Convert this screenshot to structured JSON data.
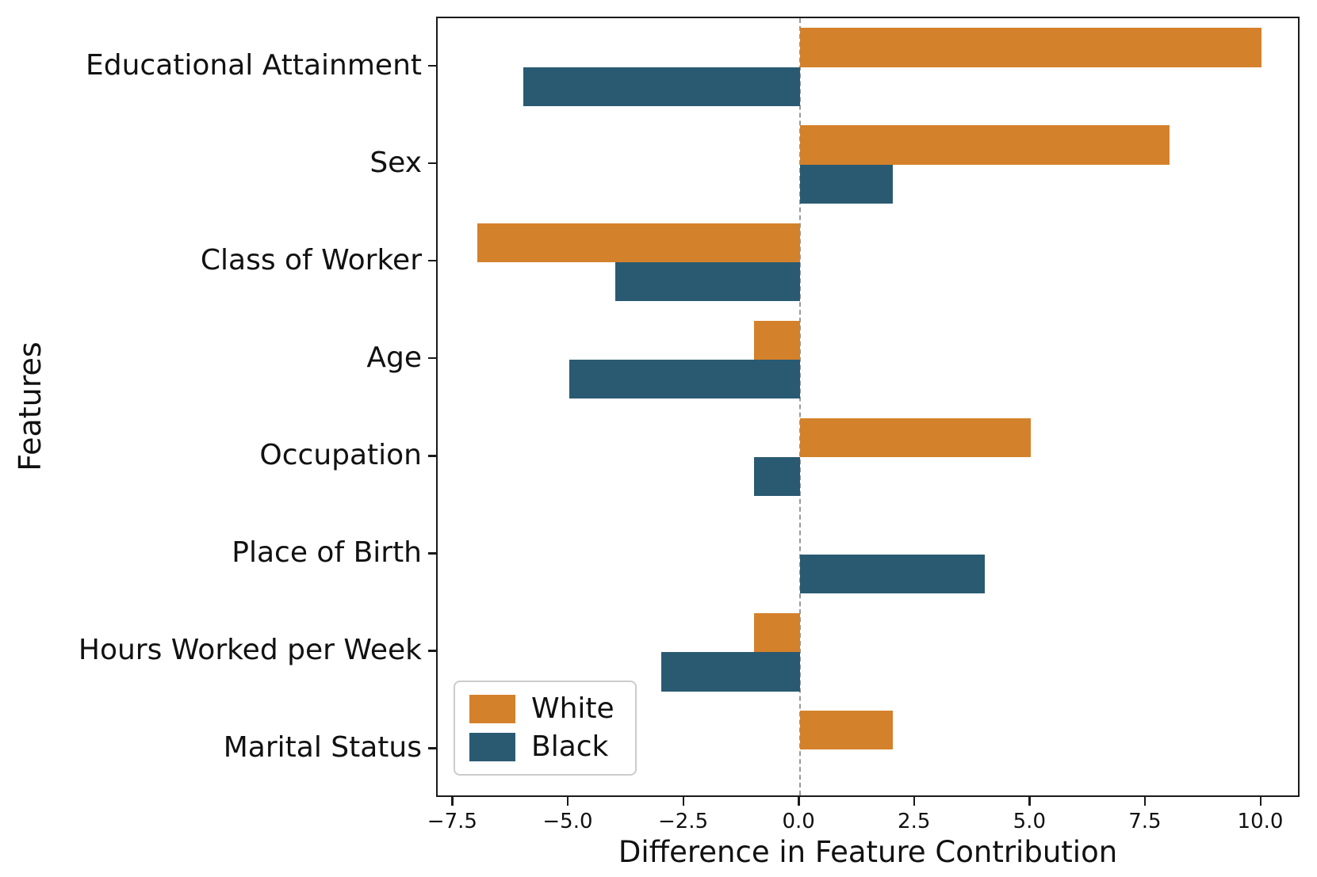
{
  "chart_data": {
    "type": "bar",
    "orientation": "horizontal",
    "title": "",
    "xlabel": "Difference in Feature Contribution",
    "ylabel": "Features",
    "categories": [
      "Educational Attainment",
      "Sex",
      "Class of Worker",
      "Age",
      "Occupation",
      "Place of Birth",
      "Hours Worked per Week",
      "Marital Status"
    ],
    "series": [
      {
        "name": "White",
        "color": "#D4812B",
        "values": [
          10,
          8,
          -7,
          -1,
          5,
          0,
          -1,
          2
        ]
      },
      {
        "name": "Black",
        "color": "#2A5A72",
        "values": [
          -6,
          2,
          -4,
          -5,
          -1,
          4,
          -3,
          0
        ]
      }
    ],
    "xlim": [
      -7.85,
      10.85
    ],
    "xticks": [
      {
        "label": "−7.5",
        "value": -7.5
      },
      {
        "label": "−5.0",
        "value": -5.0
      },
      {
        "label": "−2.5",
        "value": -2.5
      },
      {
        "label": "0.0",
        "value": 0.0
      },
      {
        "label": "2.5",
        "value": 2.5
      },
      {
        "label": "5.0",
        "value": 5.0
      },
      {
        "label": "7.5",
        "value": 7.5
      },
      {
        "label": "10.0",
        "value": 10.0
      }
    ],
    "zero_line": {
      "style": "dashed",
      "color": "#999999",
      "x": 0
    },
    "grid": false,
    "legend_position": "lower left",
    "bar_width_fraction": 0.4
  }
}
